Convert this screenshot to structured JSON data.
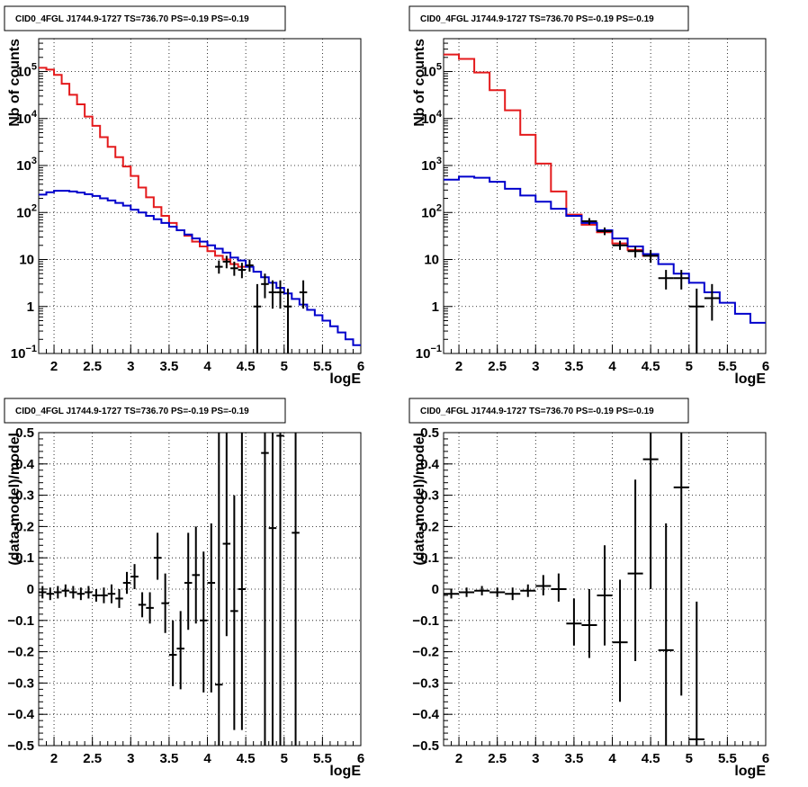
{
  "chart_data": [
    {
      "type": "line",
      "title": "CID0_4FGL J1744.9-1727 TS=736.70 PS=-0.19 PS=-0.19",
      "xlabel": "logE",
      "ylabel": "Nb of counts",
      "xlim": [
        1.8,
        6
      ],
      "ylim": [
        0.1,
        500000
      ],
      "yscale": "log",
      "grid": true,
      "x_ticks": [
        "2",
        "2.5",
        "3",
        "3.5",
        "4",
        "4.5",
        "5",
        "5.5",
        "6"
      ],
      "y_ticks": [
        {
          "v": 0.1,
          "label": "10",
          "exp": "−1"
        },
        {
          "v": 1,
          "label": "1",
          "exp": ""
        },
        {
          "v": 10,
          "label": "10",
          "exp": ""
        },
        {
          "v": 100,
          "label": "10",
          "exp": "2"
        },
        {
          "v": 1000,
          "label": "10",
          "exp": "3"
        },
        {
          "v": 10000,
          "label": "10",
          "exp": "4"
        },
        {
          "v": 100000,
          "label": "10",
          "exp": "5"
        }
      ],
      "bin_edges": [
        1.8,
        1.9,
        2.0,
        2.1,
        2.2,
        2.3,
        2.4,
        2.5,
        2.6,
        2.7,
        2.8,
        2.9,
        3.0,
        3.1,
        3.2,
        3.3,
        3.4,
        3.5,
        3.6,
        3.7,
        3.8,
        3.9,
        4.0,
        4.1,
        4.2,
        4.3,
        4.4,
        4.5,
        4.6,
        4.7,
        4.8,
        4.9,
        5.0,
        5.1,
        5.2,
        5.3,
        5.4,
        5.5,
        5.6,
        5.7,
        5.8,
        5.9,
        6.0
      ],
      "series": [
        {
          "color": "#e41a1c",
          "values": [
            120000,
            110000,
            85000,
            55000,
            32000,
            20000,
            11000,
            7000,
            4000,
            2500,
            1500,
            950,
            600,
            340,
            210,
            130,
            85,
            60,
            42,
            32,
            24,
            19,
            15,
            12,
            10,
            8,
            7
          ]
        },
        {
          "color": "#0000cc",
          "values": [
            240,
            270,
            290,
            290,
            280,
            265,
            245,
            225,
            200,
            180,
            160,
            140,
            115,
            100,
            85,
            72,
            60,
            50,
            42,
            34,
            28,
            24,
            20,
            17,
            14,
            11,
            9.5,
            7,
            5.5,
            4.2,
            3.2,
            2.5,
            1.9,
            1.45,
            1.1,
            0.85,
            0.65,
            0.5,
            0.38,
            0.28,
            0.2,
            0.15
          ]
        }
      ],
      "points": [
        {
          "x": 4.15,
          "y": 7,
          "xerr": 0.05,
          "ylo": 5,
          "yhi": 9.5
        },
        {
          "x": 4.25,
          "y": 9,
          "xerr": 0.05,
          "ylo": 6.5,
          "yhi": 12
        },
        {
          "x": 4.35,
          "y": 6.5,
          "xerr": 0.05,
          "ylo": 4.5,
          "yhi": 9
        },
        {
          "x": 4.45,
          "y": 6,
          "xerr": 0.05,
          "ylo": 4,
          "yhi": 8.5
        },
        {
          "x": 4.55,
          "y": 7.5,
          "xerr": 0.05,
          "ylo": 5.5,
          "yhi": 10
        },
        {
          "x": 4.65,
          "y": 1,
          "xerr": 0.05,
          "ylo": 0.1,
          "yhi": 3
        },
        {
          "x": 4.75,
          "y": 3,
          "xerr": 0.05,
          "ylo": 1.5,
          "yhi": 5
        },
        {
          "x": 4.85,
          "y": 2,
          "xerr": 0.05,
          "ylo": 0.9,
          "yhi": 3.6
        },
        {
          "x": 4.95,
          "y": 2,
          "xerr": 0.05,
          "ylo": 0.9,
          "yhi": 3.6
        },
        {
          "x": 5.05,
          "y": 1,
          "xerr": 0.05,
          "ylo": 0.1,
          "yhi": 2.4
        },
        {
          "x": 5.25,
          "y": 2,
          "xerr": 0.05,
          "ylo": 0.9,
          "yhi": 3.6
        }
      ]
    },
    {
      "type": "line",
      "title": "CID0_4FGL J1744.9-1727 TS=736.70 PS=-0.19 PS=-0.19",
      "xlabel": "logE",
      "ylabel": "Nb of counts",
      "xlim": [
        1.8,
        6
      ],
      "ylim": [
        0.1,
        500000
      ],
      "yscale": "log",
      "grid": true,
      "x_ticks": [
        "2",
        "2.5",
        "3",
        "3.5",
        "4",
        "4.5",
        "5",
        "5.5",
        "6"
      ],
      "y_ticks": [
        {
          "v": 0.1,
          "label": "10",
          "exp": "−1"
        },
        {
          "v": 1,
          "label": "1",
          "exp": ""
        },
        {
          "v": 10,
          "label": "10",
          "exp": ""
        },
        {
          "v": 100,
          "label": "10",
          "exp": "2"
        },
        {
          "v": 1000,
          "label": "10",
          "exp": "3"
        },
        {
          "v": 10000,
          "label": "10",
          "exp": "4"
        },
        {
          "v": 100000,
          "label": "10",
          "exp": "5"
        }
      ],
      "bin_edges": [
        1.8,
        2.0,
        2.2,
        2.4,
        2.6,
        2.8,
        3.0,
        3.2,
        3.4,
        3.6,
        3.8,
        4.0,
        4.2,
        4.4,
        4.6,
        4.8,
        5.0,
        5.2,
        5.4,
        5.6,
        5.8,
        6.0
      ],
      "series": [
        {
          "color": "#e41a1c",
          "values": [
            230000,
            185000,
            95000,
            40000,
            15000,
            4500,
            1100,
            280,
            90,
            55,
            38,
            22,
            16,
            12
          ]
        },
        {
          "color": "#0000cc",
          "values": [
            500,
            580,
            550,
            450,
            320,
            230,
            170,
            120,
            85,
            60,
            42,
            28,
            19,
            13,
            8,
            5,
            3.2,
            2,
            1.2,
            0.7,
            0.45
          ]
        }
      ],
      "points": [
        {
          "x": 3.7,
          "y": 65,
          "xerr": 0.1,
          "ylo": 55,
          "yhi": 76
        },
        {
          "x": 3.9,
          "y": 40,
          "xerr": 0.1,
          "ylo": 33,
          "yhi": 48
        },
        {
          "x": 4.1,
          "y": 20,
          "xerr": 0.1,
          "ylo": 16,
          "yhi": 25
        },
        {
          "x": 4.3,
          "y": 15,
          "xerr": 0.1,
          "ylo": 11,
          "yhi": 19
        },
        {
          "x": 4.5,
          "y": 12,
          "xerr": 0.1,
          "ylo": 8.5,
          "yhi": 16
        },
        {
          "x": 4.7,
          "y": 4,
          "xerr": 0.1,
          "ylo": 2.3,
          "yhi": 6
        },
        {
          "x": 4.9,
          "y": 4,
          "xerr": 0.1,
          "ylo": 2.3,
          "yhi": 6
        },
        {
          "x": 5.1,
          "y": 1,
          "xerr": 0.1,
          "ylo": 0.1,
          "yhi": 2.4
        },
        {
          "x": 5.3,
          "y": 1.5,
          "xerr": 0.1,
          "ylo": 0.5,
          "yhi": 3
        }
      ]
    },
    {
      "type": "scatter",
      "title": "CID0_4FGL J1744.9-1727 TS=736.70 PS=-0.19 PS=-0.19",
      "xlabel": "logE",
      "ylabel": "(data-model)/model",
      "xlim": [
        1.8,
        6
      ],
      "ylim": [
        -0.5,
        0.5
      ],
      "yscale": "linear",
      "grid": true,
      "x_ticks": [
        "2",
        "2.5",
        "3",
        "3.5",
        "4",
        "4.5",
        "5",
        "5.5",
        "6"
      ],
      "y_ticks": [
        {
          "v": -0.5,
          "label": "−0.5",
          "exp": ""
        },
        {
          "v": -0.4,
          "label": "−0.4",
          "exp": ""
        },
        {
          "v": -0.3,
          "label": "−0.3",
          "exp": ""
        },
        {
          "v": -0.2,
          "label": "−0.2",
          "exp": ""
        },
        {
          "v": -0.1,
          "label": "−0.1",
          "exp": ""
        },
        {
          "v": 0,
          "label": "0",
          "exp": ""
        },
        {
          "v": 0.1,
          "label": "0.1",
          "exp": ""
        },
        {
          "v": 0.2,
          "label": "0.2",
          "exp": ""
        },
        {
          "v": 0.3,
          "label": "0.3",
          "exp": ""
        },
        {
          "v": 0.4,
          "label": "0.4",
          "exp": ""
        },
        {
          "v": 0.5,
          "label": "0.5",
          "exp": ""
        }
      ],
      "points": [
        {
          "x": 1.85,
          "y": -0.01,
          "xerr": 0.05,
          "ylo": -0.03,
          "yhi": 0.01
        },
        {
          "x": 1.95,
          "y": -0.015,
          "xerr": 0.05,
          "ylo": -0.035,
          "yhi": 0.005
        },
        {
          "x": 2.05,
          "y": -0.01,
          "xerr": 0.05,
          "ylo": -0.03,
          "yhi": 0.01
        },
        {
          "x": 2.15,
          "y": -0.005,
          "xerr": 0.05,
          "ylo": -0.025,
          "yhi": 0.015
        },
        {
          "x": 2.25,
          "y": -0.01,
          "xerr": 0.05,
          "ylo": -0.03,
          "yhi": 0.01
        },
        {
          "x": 2.35,
          "y": -0.015,
          "xerr": 0.05,
          "ylo": -0.035,
          "yhi": 0.005
        },
        {
          "x": 2.45,
          "y": -0.01,
          "xerr": 0.05,
          "ylo": -0.03,
          "yhi": 0.01
        },
        {
          "x": 2.55,
          "y": -0.02,
          "xerr": 0.05,
          "ylo": -0.04,
          "yhi": 0.0
        },
        {
          "x": 2.65,
          "y": -0.02,
          "xerr": 0.05,
          "ylo": -0.045,
          "yhi": 0.005
        },
        {
          "x": 2.75,
          "y": -0.015,
          "xerr": 0.05,
          "ylo": -0.045,
          "yhi": 0.015
        },
        {
          "x": 2.85,
          "y": -0.03,
          "xerr": 0.05,
          "ylo": -0.06,
          "yhi": 0.0
        },
        {
          "x": 2.95,
          "y": 0.02,
          "xerr": 0.05,
          "ylo": -0.015,
          "yhi": 0.055
        },
        {
          "x": 3.05,
          "y": 0.04,
          "xerr": 0.05,
          "ylo": 0.0,
          "yhi": 0.08
        },
        {
          "x": 3.15,
          "y": -0.05,
          "xerr": 0.05,
          "ylo": -0.09,
          "yhi": -0.01
        },
        {
          "x": 3.25,
          "y": -0.06,
          "xerr": 0.05,
          "ylo": -0.11,
          "yhi": -0.01
        },
        {
          "x": 3.35,
          "y": 0.1,
          "xerr": 0.05,
          "ylo": 0.03,
          "yhi": 0.18
        },
        {
          "x": 3.45,
          "y": -0.045,
          "xerr": 0.05,
          "ylo": -0.14,
          "yhi": 0.05
        },
        {
          "x": 3.55,
          "y": -0.21,
          "xerr": 0.05,
          "ylo": -0.31,
          "yhi": -0.1
        },
        {
          "x": 3.65,
          "y": -0.19,
          "xerr": 0.05,
          "ylo": -0.32,
          "yhi": -0.07
        },
        {
          "x": 3.75,
          "y": 0.02,
          "xerr": 0.05,
          "ylo": -0.13,
          "yhi": 0.18
        },
        {
          "x": 3.85,
          "y": 0.045,
          "xerr": 0.05,
          "ylo": -0.11,
          "yhi": 0.2
        },
        {
          "x": 3.95,
          "y": -0.1,
          "xerr": 0.05,
          "ylo": -0.33,
          "yhi": 0.12
        },
        {
          "x": 4.05,
          "y": 0.02,
          "xerr": 0.05,
          "ylo": -0.33,
          "yhi": 0.21
        },
        {
          "x": 4.15,
          "y": -0.305,
          "xerr": 0.05,
          "ylo": -0.5,
          "yhi": 0.5
        },
        {
          "x": 4.25,
          "y": 0.145,
          "xerr": 0.05,
          "ylo": -0.15,
          "yhi": 0.5
        },
        {
          "x": 4.35,
          "y": -0.07,
          "xerr": 0.05,
          "ylo": -0.45,
          "yhi": 0.3
        },
        {
          "x": 4.45,
          "y": 0.0,
          "xerr": 0.05,
          "ylo": -0.45,
          "yhi": 0.5
        },
        {
          "x": 4.75,
          "y": 0.435,
          "xerr": 0.05,
          "ylo": -0.5,
          "yhi": 0.5
        },
        {
          "x": 4.85,
          "y": 0.195,
          "xerr": 0.05,
          "ylo": -0.5,
          "yhi": 0.5
        },
        {
          "x": 4.95,
          "y": 0.49,
          "xerr": 0.05,
          "ylo": -0.5,
          "yhi": 0.5
        },
        {
          "x": 5.15,
          "y": 0.18,
          "xerr": 0.05,
          "ylo": -0.5,
          "yhi": 0.5
        }
      ]
    },
    {
      "type": "scatter",
      "title": "CID0_4FGL J1744.9-1727 TS=736.70 PS=-0.19 PS=-0.19",
      "xlabel": "logE",
      "ylabel": "(data-model)/model",
      "xlim": [
        1.8,
        6
      ],
      "ylim": [
        -0.5,
        0.5
      ],
      "yscale": "linear",
      "grid": true,
      "x_ticks": [
        "2",
        "2.5",
        "3",
        "3.5",
        "4",
        "4.5",
        "5",
        "5.5",
        "6"
      ],
      "y_ticks": [
        {
          "v": -0.5,
          "label": "−0.5",
          "exp": ""
        },
        {
          "v": -0.4,
          "label": "−0.4",
          "exp": ""
        },
        {
          "v": -0.3,
          "label": "−0.3",
          "exp": ""
        },
        {
          "v": -0.2,
          "label": "−0.2",
          "exp": ""
        },
        {
          "v": -0.1,
          "label": "−0.1",
          "exp": ""
        },
        {
          "v": 0,
          "label": "0",
          "exp": ""
        },
        {
          "v": 0.1,
          "label": "0.1",
          "exp": ""
        },
        {
          "v": 0.2,
          "label": "0.2",
          "exp": ""
        },
        {
          "v": 0.3,
          "label": "0.3",
          "exp": ""
        },
        {
          "v": 0.4,
          "label": "0.4",
          "exp": ""
        },
        {
          "v": 0.5,
          "label": "0.5",
          "exp": ""
        }
      ],
      "points": [
        {
          "x": 1.9,
          "y": -0.015,
          "xerr": 0.1,
          "ylo": -0.03,
          "yhi": 0.0
        },
        {
          "x": 2.1,
          "y": -0.01,
          "xerr": 0.1,
          "ylo": -0.025,
          "yhi": 0.005
        },
        {
          "x": 2.3,
          "y": -0.005,
          "xerr": 0.1,
          "ylo": -0.02,
          "yhi": 0.01
        },
        {
          "x": 2.5,
          "y": -0.01,
          "xerr": 0.1,
          "ylo": -0.025,
          "yhi": 0.005
        },
        {
          "x": 2.7,
          "y": -0.015,
          "xerr": 0.1,
          "ylo": -0.035,
          "yhi": 0.005
        },
        {
          "x": 2.9,
          "y": -0.005,
          "xerr": 0.1,
          "ylo": -0.025,
          "yhi": 0.015
        },
        {
          "x": 3.1,
          "y": 0.01,
          "xerr": 0.1,
          "ylo": -0.02,
          "yhi": 0.045
        },
        {
          "x": 3.3,
          "y": 0.0,
          "xerr": 0.1,
          "ylo": -0.04,
          "yhi": 0.05
        },
        {
          "x": 3.5,
          "y": -0.11,
          "xerr": 0.1,
          "ylo": -0.18,
          "yhi": -0.03
        },
        {
          "x": 3.7,
          "y": -0.115,
          "xerr": 0.1,
          "ylo": -0.22,
          "yhi": 0.0
        },
        {
          "x": 3.9,
          "y": -0.02,
          "xerr": 0.1,
          "ylo": -0.18,
          "yhi": 0.14
        },
        {
          "x": 4.1,
          "y": -0.17,
          "xerr": 0.1,
          "ylo": -0.36,
          "yhi": 0.03
        },
        {
          "x": 4.3,
          "y": 0.05,
          "xerr": 0.1,
          "ylo": -0.23,
          "yhi": 0.35
        },
        {
          "x": 4.5,
          "y": 0.415,
          "xerr": 0.1,
          "ylo": 0.0,
          "yhi": 0.5
        },
        {
          "x": 4.7,
          "y": -0.195,
          "xerr": 0.1,
          "ylo": -0.5,
          "yhi": 0.21
        },
        {
          "x": 4.9,
          "y": 0.325,
          "xerr": 0.1,
          "ylo": -0.34,
          "yhi": 0.5
        },
        {
          "x": 5.1,
          "y": -0.48,
          "xerr": 0.1,
          "ylo": -0.5,
          "yhi": -0.04
        }
      ]
    }
  ]
}
